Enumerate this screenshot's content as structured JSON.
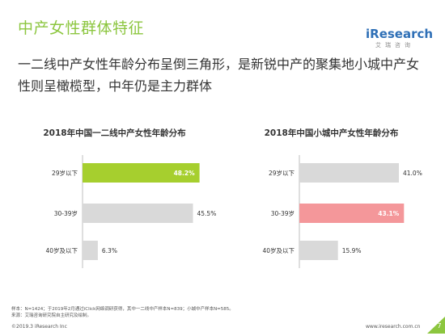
{
  "slide": {
    "title": "中产女性群体特征",
    "subtitle": "一二线中产女性年龄分布呈倒三角形，是新锐中产的聚集地小城中产女性则呈橄榄型，中年仍是主力群体",
    "logo_main": "iResearch",
    "logo_sub": "艾瑞咨询",
    "footnote_line1": "样本：N=1424；于2019年2月通过iClick网络调研获得，其中一二线中产样本N=839；小城中产样本N=585。",
    "footnote_line2": "来源：艾瑞咨询研究院自主研究及绘制。",
    "copyright": "©2019.3 iResearch Inc",
    "site": "www.iresearch.com.cn",
    "page": "7"
  },
  "colors": {
    "brand_green": "#8cc63f",
    "highlight_green": "#a6cf2e",
    "highlight_pink": "#f4979a",
    "bar_gray": "#d9d9d9",
    "brand_blue": "#2e6fb6"
  },
  "chart_data": [
    {
      "type": "bar",
      "orientation": "horizontal",
      "title": "2018年中国一二线中产女性年龄分布",
      "categories": [
        "29岁以下",
        "30-39岁",
        "40岁及以下"
      ],
      "values": [
        48.2,
        45.5,
        6.3
      ],
      "labels": [
        "48.2%",
        "45.5%",
        "6.3%"
      ],
      "unit": "%",
      "highlight_index": 0,
      "highlight_color": "#a6cf2e",
      "xlim": [
        0,
        50
      ]
    },
    {
      "type": "bar",
      "orientation": "horizontal",
      "title": "2018年中国小城中产女性年龄分布",
      "categories": [
        "29岁以下",
        "30-39岁",
        "40岁及以下"
      ],
      "values": [
        41.0,
        43.1,
        15.9
      ],
      "labels": [
        "41.0%",
        "43.1%",
        "15.9%"
      ],
      "unit": "%",
      "highlight_index": 1,
      "highlight_color": "#f4979a",
      "xlim": [
        0,
        50
      ]
    }
  ]
}
